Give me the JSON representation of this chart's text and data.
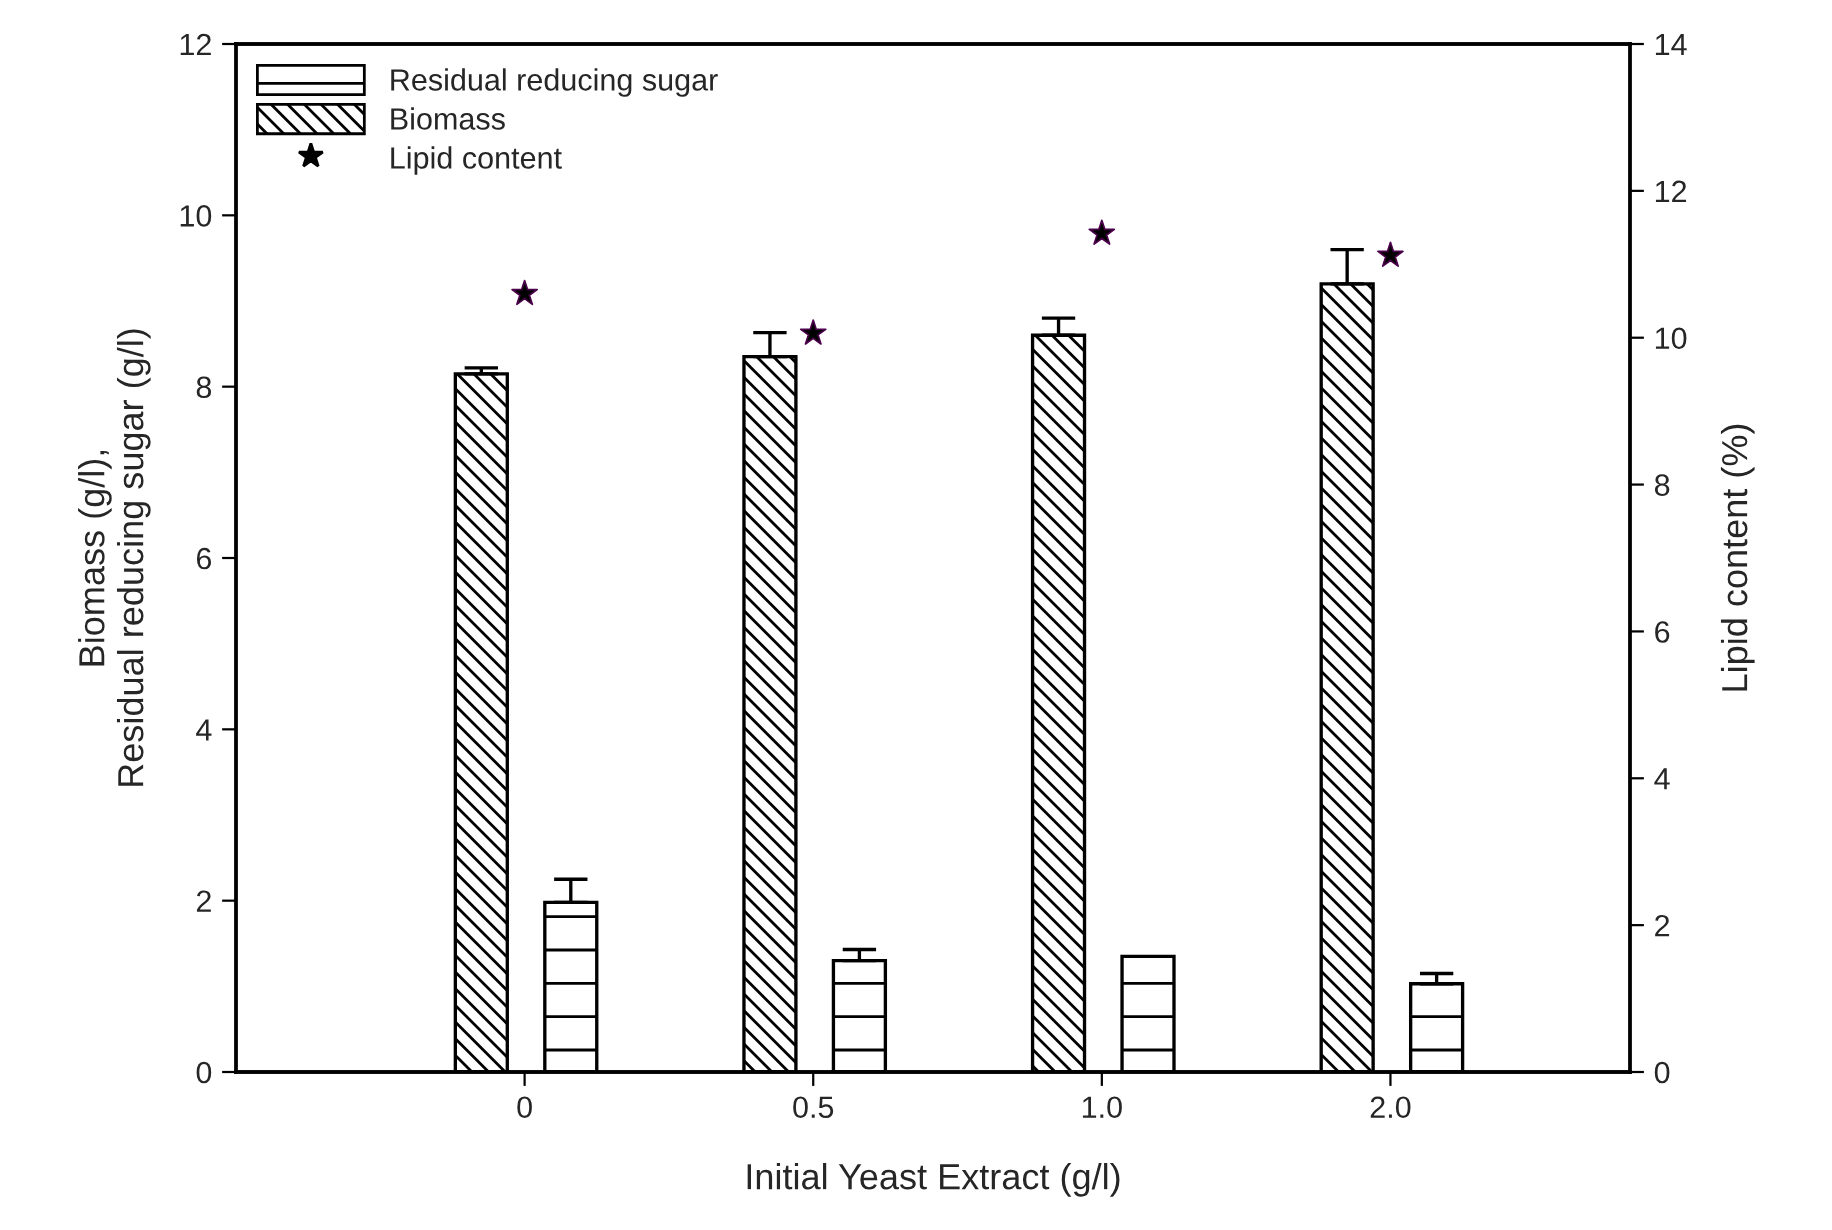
{
  "chart_data": {
    "type": "bar",
    "xlabel": "Initial Yeast Extract (g/l)",
    "ylabel": "Biomass (g/l),\nResidual reducing sugar (g/l)",
    "y2label": "Lipid content (%)",
    "categories": [
      "0",
      "0.5",
      "1.0",
      "2.0"
    ],
    "series": [
      {
        "name": "Residual reducing sugar",
        "color": "#000000",
        "values": [
          1.98,
          1.3,
          1.35,
          1.03
        ],
        "errors": [
          0.27,
          0.13,
          null,
          0.12
        ]
      },
      {
        "name": "Biomass",
        "color": "#000000",
        "values": [
          8.15,
          8.35,
          8.6,
          9.2
        ],
        "errors": [
          0.07,
          0.28,
          0.2,
          0.4
        ]
      },
      {
        "name": "Lipid content",
        "type": "scatter",
        "axis": "y2",
        "marker": "star",
        "color": "#000000",
        "values": [
          10.6,
          10.06,
          11.42,
          11.12
        ]
      }
    ],
    "ylim": [
      0,
      12
    ],
    "yticks": [
      0,
      2,
      4,
      6,
      8,
      10,
      12
    ],
    "y2lim": [
      0,
      14
    ],
    "y2ticks": [
      0,
      2,
      4,
      6,
      8,
      10,
      12,
      14
    ],
    "grid": false,
    "legend": "top left"
  }
}
